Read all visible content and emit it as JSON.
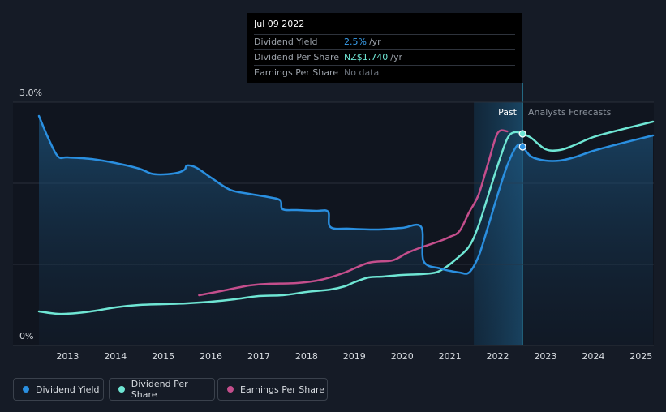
{
  "chart_data": {
    "type": "line",
    "title": "",
    "xlabel": "",
    "ylabel": "",
    "y_axis_labels": {
      "top": "3.0%",
      "bottom": "0%"
    },
    "ylim": [
      0,
      3.0
    ],
    "xlim": [
      2012.4,
      2025.25
    ],
    "x_ticks": [
      "2013",
      "2014",
      "2015",
      "2016",
      "2017",
      "2018",
      "2019",
      "2020",
      "2021",
      "2022",
      "2023",
      "2024",
      "2025"
    ],
    "regions": {
      "past_label": "Past",
      "forecast_label": "Analysts Forecasts",
      "past_start": 2021.5,
      "today": 2022.52
    },
    "series": [
      {
        "name": "Dividend Yield",
        "color": "#2a8fe0",
        "points": [
          [
            2012.4,
            2.83
          ],
          [
            2012.6,
            2.55
          ],
          [
            2012.8,
            2.33
          ],
          [
            2013.0,
            2.32
          ],
          [
            2013.5,
            2.3
          ],
          [
            2014.0,
            2.25
          ],
          [
            2014.5,
            2.18
          ],
          [
            2014.75,
            2.12
          ],
          [
            2015.0,
            2.11
          ],
          [
            2015.3,
            2.13
          ],
          [
            2015.45,
            2.17
          ],
          [
            2015.5,
            2.22
          ],
          [
            2015.7,
            2.19
          ],
          [
            2016.0,
            2.07
          ],
          [
            2016.4,
            1.92
          ],
          [
            2016.8,
            1.87
          ],
          [
            2017.2,
            1.83
          ],
          [
            2017.45,
            1.79
          ],
          [
            2017.5,
            1.68
          ],
          [
            2017.8,
            1.67
          ],
          [
            2018.2,
            1.66
          ],
          [
            2018.45,
            1.65
          ],
          [
            2018.5,
            1.46
          ],
          [
            2018.9,
            1.44
          ],
          [
            2019.5,
            1.43
          ],
          [
            2020.0,
            1.45
          ],
          [
            2020.4,
            1.46
          ],
          [
            2020.45,
            1.04
          ],
          [
            2020.8,
            0.95
          ],
          [
            2021.0,
            0.92
          ],
          [
            2021.2,
            0.9
          ],
          [
            2021.4,
            0.9
          ],
          [
            2021.6,
            1.1
          ],
          [
            2021.8,
            1.47
          ],
          [
            2022.0,
            1.86
          ],
          [
            2022.2,
            2.22
          ],
          [
            2022.4,
            2.46
          ],
          [
            2022.52,
            2.45
          ],
          [
            2022.7,
            2.33
          ],
          [
            2023.0,
            2.28
          ],
          [
            2023.3,
            2.28
          ],
          [
            2023.6,
            2.32
          ],
          [
            2024.0,
            2.4
          ],
          [
            2024.5,
            2.48
          ],
          [
            2025.25,
            2.59
          ]
        ]
      },
      {
        "name": "Dividend Per Share",
        "color": "#6fe6d4",
        "points": [
          [
            2012.4,
            0.42
          ],
          [
            2012.8,
            0.39
          ],
          [
            2013.2,
            0.4
          ],
          [
            2013.6,
            0.43
          ],
          [
            2014.0,
            0.47
          ],
          [
            2014.5,
            0.5
          ],
          [
            2015.0,
            0.51
          ],
          [
            2015.5,
            0.52
          ],
          [
            2016.0,
            0.54
          ],
          [
            2016.5,
            0.57
          ],
          [
            2017.0,
            0.61
          ],
          [
            2017.5,
            0.62
          ],
          [
            2018.0,
            0.66
          ],
          [
            2018.5,
            0.69
          ],
          [
            2018.8,
            0.73
          ],
          [
            2019.0,
            0.78
          ],
          [
            2019.3,
            0.84
          ],
          [
            2019.6,
            0.85
          ],
          [
            2020.0,
            0.87
          ],
          [
            2020.4,
            0.88
          ],
          [
            2020.7,
            0.9
          ],
          [
            2020.9,
            0.96
          ],
          [
            2021.1,
            1.05
          ],
          [
            2021.4,
            1.22
          ],
          [
            2021.6,
            1.48
          ],
          [
            2021.8,
            1.85
          ],
          [
            2022.0,
            2.22
          ],
          [
            2022.2,
            2.55
          ],
          [
            2022.35,
            2.63
          ],
          [
            2022.52,
            2.61
          ],
          [
            2022.7,
            2.56
          ],
          [
            2023.0,
            2.42
          ],
          [
            2023.3,
            2.41
          ],
          [
            2023.6,
            2.47
          ],
          [
            2024.0,
            2.57
          ],
          [
            2024.5,
            2.65
          ],
          [
            2025.25,
            2.76
          ]
        ]
      },
      {
        "name": "Earnings Per Share",
        "color": "#c44e8c",
        "points": [
          [
            2015.75,
            0.62
          ],
          [
            2016.2,
            0.67
          ],
          [
            2016.8,
            0.74
          ],
          [
            2017.2,
            0.76
          ],
          [
            2017.8,
            0.77
          ],
          [
            2018.3,
            0.81
          ],
          [
            2018.8,
            0.9
          ],
          [
            2019.3,
            1.02
          ],
          [
            2019.8,
            1.05
          ],
          [
            2020.1,
            1.14
          ],
          [
            2020.4,
            1.21
          ],
          [
            2020.8,
            1.29
          ],
          [
            2021.0,
            1.34
          ],
          [
            2021.2,
            1.41
          ],
          [
            2021.4,
            1.64
          ],
          [
            2021.6,
            1.86
          ],
          [
            2021.8,
            2.25
          ],
          [
            2022.0,
            2.62
          ],
          [
            2022.2,
            2.64
          ]
        ]
      }
    ],
    "tooltip": {
      "date": "Jul 09 2022",
      "rows": [
        {
          "label": "Dividend Yield",
          "value": "2.5%",
          "unit": "/yr"
        },
        {
          "label": "Dividend Per Share",
          "value": "NZ$1.740",
          "unit": "/yr"
        },
        {
          "label": "Earnings Per Share",
          "value": "No data",
          "unit": ""
        }
      ]
    },
    "legend": [
      "Dividend Yield",
      "Dividend Per Share",
      "Earnings Per Share"
    ]
  }
}
